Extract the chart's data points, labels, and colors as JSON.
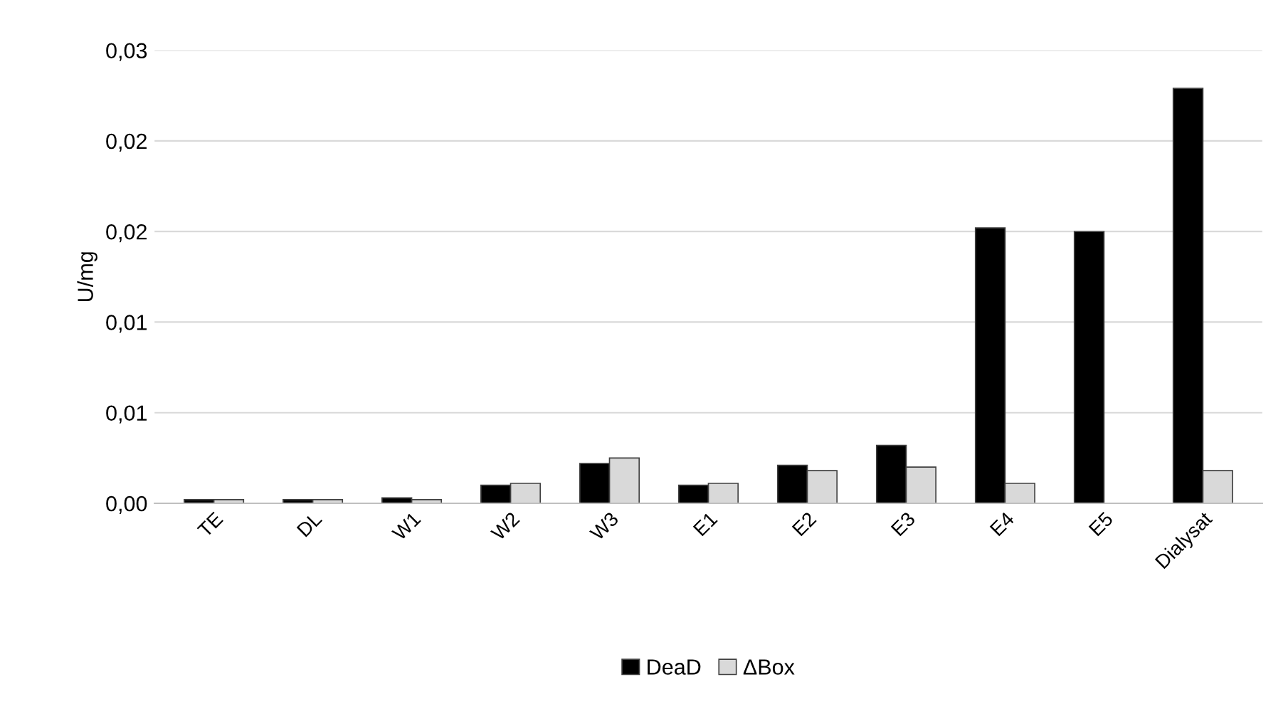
{
  "chart_data": {
    "type": "bar",
    "ylabel": "U/mg",
    "categories": [
      "TE",
      "DL",
      "W1",
      "W2",
      "W3",
      "E1",
      "E2",
      "E3",
      "E4",
      "E5",
      "Dialysat"
    ],
    "series": [
      {
        "name": "DeaD",
        "color": "#000000",
        "values": [
          0.0002,
          0.0002,
          0.0003,
          0.001,
          0.0022,
          0.001,
          0.0021,
          0.0032,
          0.0152,
          0.015,
          0.0229
        ]
      },
      {
        "name": "ΔBox",
        "color": "#d9d9d9",
        "values": [
          0.0002,
          0.0002,
          0.0002,
          0.0011,
          0.0025,
          0.0011,
          0.0018,
          0.002,
          0.0011,
          null,
          0.0018
        ]
      }
    ],
    "ylim": [
      0,
      0.025
    ],
    "yticks": [
      {
        "value": 0,
        "label": "0,00"
      },
      {
        "value": 0.005,
        "label": "0,01"
      },
      {
        "value": 0.01,
        "label": "0,01"
      },
      {
        "value": 0.015,
        "label": "0,02"
      },
      {
        "value": 0.02,
        "label": "0,02"
      },
      {
        "value": 0.025,
        "label": "0,03"
      }
    ],
    "grid": "y",
    "legend": "bottom"
  }
}
